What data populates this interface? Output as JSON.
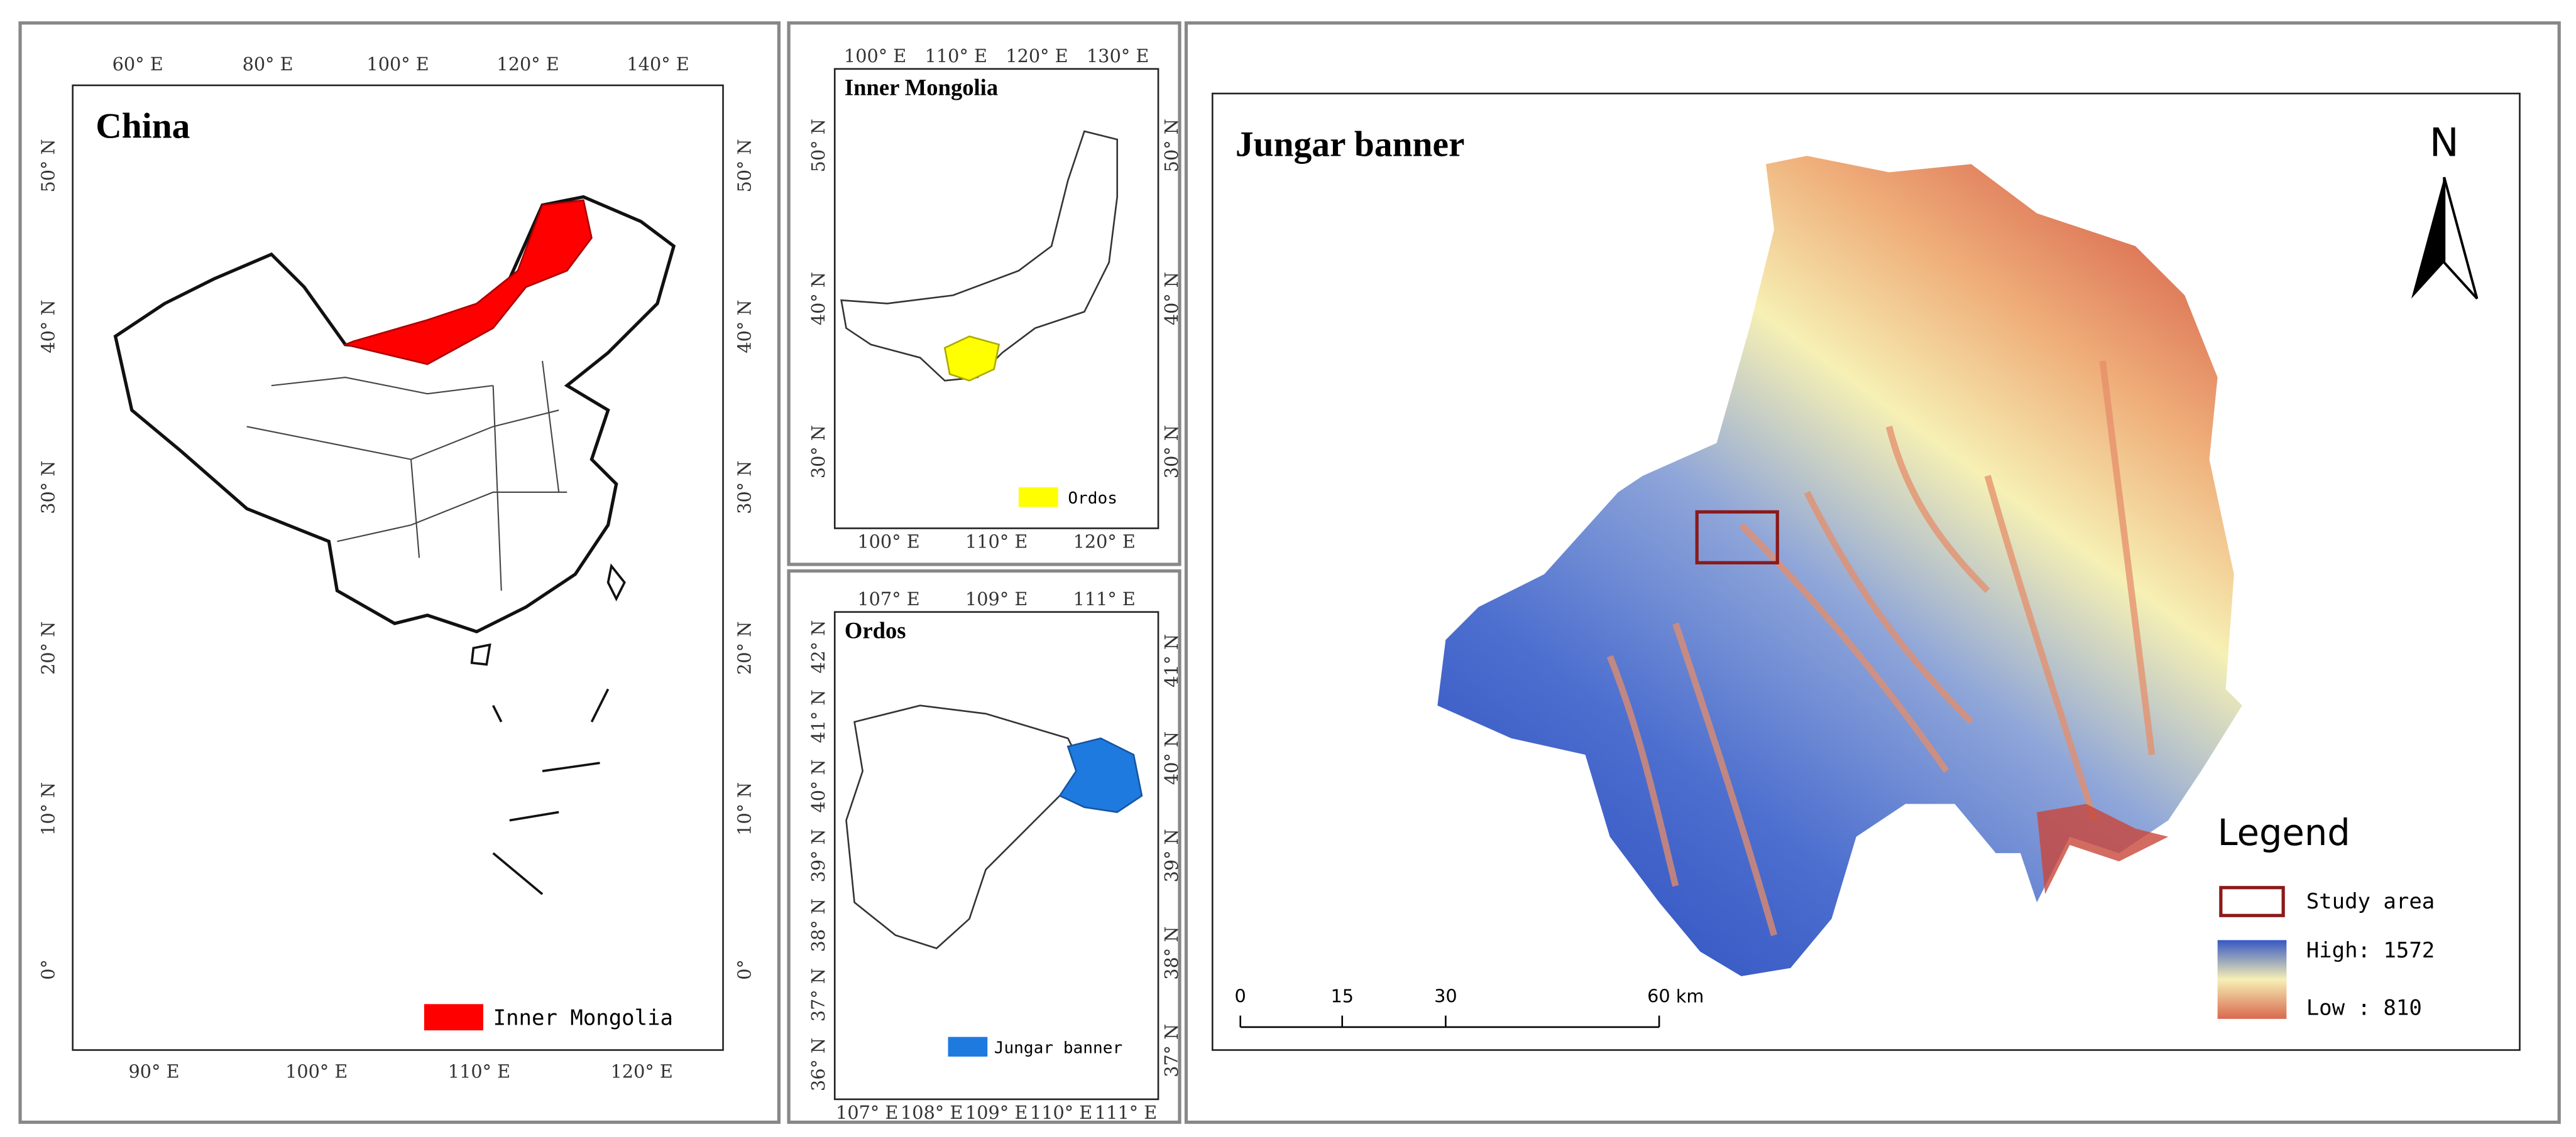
{
  "panels": [
    {
      "title": "China",
      "top_ticks": [
        "60° E",
        "80° E",
        "100° E",
        "120° E",
        "140° E"
      ],
      "bottom_ticks": [
        "90° E",
        "100° E",
        "110° E",
        "120° E"
      ],
      "left_ticks": [
        "50° N",
        "40° N",
        "30° N",
        "20° N",
        "10° N",
        "0°"
      ],
      "right_ticks": [
        "50° N",
        "40° N",
        "30° N",
        "20° N",
        "10° N",
        "0°"
      ],
      "legend": "Inner Mongolia"
    },
    {
      "title": "Inner Mongolia",
      "top_ticks": [
        "100° E",
        "110° E",
        "120° E",
        "130° E"
      ],
      "bottom_ticks": [
        "100° E",
        "110° E",
        "120° E"
      ],
      "left_ticks": [
        "50° N",
        "40° N",
        "30° N"
      ],
      "right_ticks": [
        "50° N",
        "40° N",
        "30° N"
      ],
      "legend": "Ordos"
    },
    {
      "title": "Ordos",
      "top_ticks": [
        "107° E",
        "109° E",
        "111° E"
      ],
      "bottom_ticks": [
        "107° E",
        "108° E",
        "109° E",
        "110° E",
        "111° E"
      ],
      "left_ticks": [
        "42° N",
        "41° N",
        "40° N",
        "39° N",
        "38° N",
        "37° N",
        "36° N"
      ],
      "right_ticks": [
        "41° N",
        "40° N",
        "39° N",
        "38° N",
        "37° N"
      ],
      "legend": "Jungar banner"
    }
  ],
  "main": {
    "title": "Jungar banner",
    "north": "N",
    "legend_title": "Legend",
    "study_area": "Study area",
    "high": "High: 1572",
    "low": "Low : 810",
    "scale": [
      "0",
      "15",
      "30",
      "60 km"
    ]
  }
}
